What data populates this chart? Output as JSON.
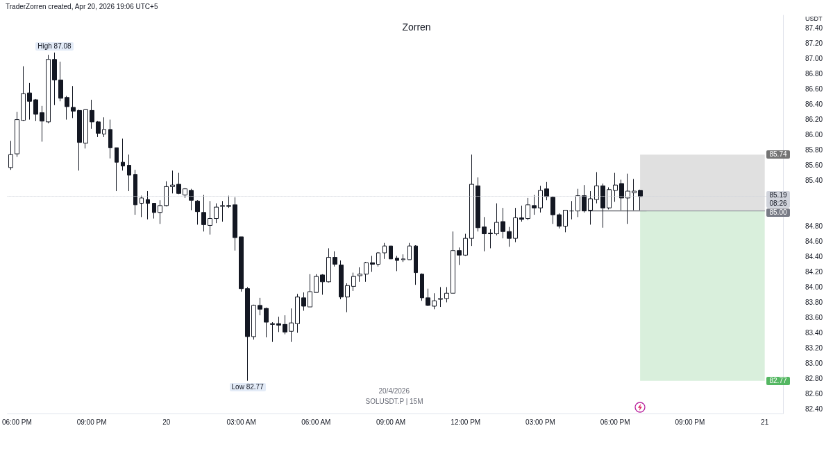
{
  "chart_data": {
    "type": "candlestick",
    "title": "Zorren",
    "subtitle": "TraderZorren created, Apr 20, 2026 19:06 UTC+5",
    "ylabel": "USDT",
    "annotations": [
      "20/4/2026",
      "SOLUSDT.P | 15M",
      {
        "text": "High 87.08",
        "x": "2026-04-19T19:30",
        "y": 87.08
      },
      {
        "text": "Low 82.77",
        "x": "2026-04-20T03:15",
        "y": 82.77
      }
    ],
    "x": [
      "2026-04-19T17:45",
      "2026-04-19T18:00",
      "2026-04-19T18:15",
      "2026-04-19T18:30",
      "2026-04-19T18:45",
      "2026-04-19T19:00",
      "2026-04-19T19:15",
      "2026-04-19T19:30",
      "2026-04-19T19:45",
      "2026-04-19T20:00",
      "2026-04-19T20:15",
      "2026-04-19T20:30",
      "2026-04-19T20:45",
      "2026-04-19T21:00",
      "2026-04-19T21:15",
      "2026-04-19T21:30",
      "2026-04-19T21:45",
      "2026-04-19T22:00",
      "2026-04-19T22:15",
      "2026-04-19T22:30",
      "2026-04-19T22:45",
      "2026-04-19T23:00",
      "2026-04-19T23:15",
      "2026-04-19T23:30",
      "2026-04-19T23:45",
      "2026-04-20T00:00",
      "2026-04-20T00:15",
      "2026-04-20T00:30",
      "2026-04-20T00:45",
      "2026-04-20T01:00",
      "2026-04-20T01:15",
      "2026-04-20T01:30",
      "2026-04-20T01:45",
      "2026-04-20T02:00",
      "2026-04-20T02:15",
      "2026-04-20T02:30",
      "2026-04-20T02:45",
      "2026-04-20T03:00",
      "2026-04-20T03:15",
      "2026-04-20T03:30",
      "2026-04-20T03:45",
      "2026-04-20T04:00",
      "2026-04-20T04:15",
      "2026-04-20T04:30",
      "2026-04-20T04:45",
      "2026-04-20T05:00",
      "2026-04-20T05:15",
      "2026-04-20T05:30",
      "2026-04-20T05:45",
      "2026-04-20T06:00",
      "2026-04-20T06:15",
      "2026-04-20T06:30",
      "2026-04-20T06:45",
      "2026-04-20T07:00",
      "2026-04-20T07:15",
      "2026-04-20T07:30",
      "2026-04-20T07:45",
      "2026-04-20T08:00",
      "2026-04-20T08:15",
      "2026-04-20T08:30",
      "2026-04-20T08:45",
      "2026-04-20T09:00",
      "2026-04-20T09:15",
      "2026-04-20T09:30",
      "2026-04-20T09:45",
      "2026-04-20T10:00",
      "2026-04-20T10:15",
      "2026-04-20T10:30",
      "2026-04-20T10:45",
      "2026-04-20T11:00",
      "2026-04-20T11:15",
      "2026-04-20T11:30",
      "2026-04-20T11:45",
      "2026-04-20T12:00",
      "2026-04-20T12:15",
      "2026-04-20T12:30",
      "2026-04-20T12:45",
      "2026-04-20T13:00",
      "2026-04-20T13:15",
      "2026-04-20T13:30",
      "2026-04-20T13:45",
      "2026-04-20T14:00",
      "2026-04-20T14:15",
      "2026-04-20T14:30",
      "2026-04-20T14:45",
      "2026-04-20T15:00",
      "2026-04-20T15:15",
      "2026-04-20T15:30",
      "2026-04-20T15:45",
      "2026-04-20T16:00",
      "2026-04-20T16:15",
      "2026-04-20T16:30",
      "2026-04-20T16:45",
      "2026-04-20T17:00",
      "2026-04-20T17:15",
      "2026-04-20T17:30",
      "2026-04-20T17:45",
      "2026-04-20T18:00",
      "2026-04-20T18:15",
      "2026-04-20T18:30",
      "2026-04-20T18:45",
      "2026-04-20T19:00"
    ],
    "ohlc": [
      [
        85.57,
        85.92,
        85.54,
        85.74
      ],
      [
        85.75,
        86.3,
        85.71,
        86.2
      ],
      [
        86.19,
        86.9,
        86.18,
        86.54
      ],
      [
        86.55,
        86.68,
        86.2,
        86.44
      ],
      [
        86.46,
        86.47,
        86.18,
        86.27
      ],
      [
        86.29,
        86.38,
        85.91,
        86.18
      ],
      [
        86.17,
        87.05,
        86.15,
        86.99
      ],
      [
        86.99,
        87.08,
        86.39,
        86.72
      ],
      [
        86.72,
        86.96,
        86.44,
        86.48
      ],
      [
        86.49,
        86.51,
        86.2,
        86.37
      ],
      [
        86.36,
        86.64,
        86.22,
        86.31
      ],
      [
        86.32,
        86.33,
        85.53,
        85.9
      ],
      [
        85.89,
        86.33,
        85.82,
        86.33
      ],
      [
        86.32,
        86.46,
        86.08,
        86.17
      ],
      [
        86.17,
        86.18,
        85.97,
        86.02
      ],
      [
        86.01,
        86.23,
        85.97,
        86.07
      ],
      [
        86.07,
        86.2,
        85.69,
        85.83
      ],
      [
        85.83,
        85.83,
        85.26,
        85.64
      ],
      [
        85.64,
        85.95,
        85.53,
        85.59
      ],
      [
        85.6,
        85.74,
        85.26,
        85.47
      ],
      [
        85.48,
        85.54,
        84.95,
        85.08
      ],
      [
        85.1,
        85.2,
        84.92,
        85.17
      ],
      [
        85.15,
        85.26,
        84.89,
        85.1
      ],
      [
        85.1,
        85.1,
        84.9,
        84.98
      ],
      [
        84.98,
        85.14,
        84.83,
        85.07
      ],
      [
        85.07,
        85.39,
        85.06,
        85.32
      ],
      [
        85.32,
        85.53,
        85.23,
        85.34
      ],
      [
        85.35,
        85.5,
        85.22,
        85.23
      ],
      [
        85.21,
        85.3,
        85.17,
        85.29
      ],
      [
        85.27,
        85.29,
        85.01,
        85.14
      ],
      [
        85.13,
        85.14,
        84.82,
        84.99
      ],
      [
        84.98,
        85.21,
        84.73,
        84.82
      ],
      [
        84.81,
        85.13,
        84.69,
        84.9
      ],
      [
        84.9,
        85.1,
        84.84,
        85.05
      ],
      [
        85.06,
        85.13,
        84.86,
        85.07
      ],
      [
        85.07,
        85.2,
        85.04,
        85.06
      ],
      [
        85.08,
        85.18,
        84.48,
        84.65
      ],
      [
        84.66,
        84.66,
        83.94,
        83.98
      ],
      [
        83.98,
        84.0,
        82.77,
        83.35
      ],
      [
        83.35,
        83.77,
        83.31,
        83.76
      ],
      [
        83.76,
        83.86,
        83.63,
        83.71
      ],
      [
        83.72,
        83.73,
        83.34,
        83.54
      ],
      [
        83.52,
        83.54,
        83.28,
        83.51
      ],
      [
        83.52,
        83.61,
        83.41,
        83.5
      ],
      [
        83.51,
        83.63,
        83.38,
        83.41
      ],
      [
        83.42,
        83.72,
        83.28,
        83.53
      ],
      [
        83.52,
        83.91,
        83.4,
        83.87
      ],
      [
        83.86,
        83.93,
        83.69,
        83.75
      ],
      [
        83.74,
        84.17,
        83.74,
        83.94
      ],
      [
        83.93,
        84.17,
        83.93,
        84.14
      ],
      [
        84.16,
        84.17,
        83.9,
        84.07
      ],
      [
        84.07,
        84.51,
        84.06,
        84.39
      ],
      [
        84.39,
        84.47,
        84.27,
        84.3
      ],
      [
        84.29,
        84.35,
        83.84,
        83.87
      ],
      [
        83.87,
        84.05,
        83.67,
        84.02
      ],
      [
        84.01,
        84.19,
        83.95,
        84.14
      ],
      [
        84.15,
        84.26,
        84.07,
        84.17
      ],
      [
        84.17,
        84.33,
        84.07,
        84.32
      ],
      [
        84.32,
        84.41,
        84.2,
        84.3
      ],
      [
        84.3,
        84.46,
        84.27,
        84.45
      ],
      [
        84.45,
        84.58,
        84.37,
        84.54
      ],
      [
        84.54,
        84.54,
        84.37,
        84.37
      ],
      [
        84.38,
        84.41,
        84.21,
        84.35
      ],
      [
        84.36,
        84.43,
        84.33,
        84.37
      ],
      [
        84.36,
        84.58,
        84.36,
        84.54
      ],
      [
        84.54,
        84.55,
        84.03,
        84.19
      ],
      [
        84.17,
        84.18,
        83.82,
        83.86
      ],
      [
        83.86,
        83.98,
        83.75,
        83.76
      ],
      [
        83.75,
        83.92,
        83.71,
        83.82
      ],
      [
        83.84,
        84.0,
        83.74,
        83.85
      ],
      [
        83.85,
        84.0,
        83.8,
        83.92
      ],
      [
        83.92,
        84.73,
        83.92,
        84.48
      ],
      [
        84.48,
        84.52,
        84.29,
        84.42
      ],
      [
        84.42,
        84.7,
        84.41,
        84.64
      ],
      [
        84.64,
        85.74,
        84.54,
        85.35
      ],
      [
        85.33,
        85.44,
        84.73,
        84.78
      ],
      [
        84.79,
        84.92,
        84.47,
        84.7
      ],
      [
        84.71,
        84.76,
        84.51,
        84.7
      ],
      [
        84.7,
        85.1,
        84.68,
        84.85
      ],
      [
        84.86,
        85.04,
        84.64,
        84.73
      ],
      [
        84.73,
        84.79,
        84.53,
        84.64
      ],
      [
        84.64,
        85.04,
        84.59,
        84.91
      ],
      [
        84.91,
        85.07,
        84.86,
        84.89
      ],
      [
        84.9,
        85.17,
        84.88,
        85.08
      ],
      [
        85.07,
        85.21,
        84.95,
        85.04
      ],
      [
        85.04,
        85.33,
        84.98,
        85.27
      ],
      [
        85.29,
        85.38,
        85.14,
        85.19
      ],
      [
        85.18,
        85.19,
        84.83,
        84.95
      ],
      [
        84.95,
        84.97,
        84.77,
        84.8
      ],
      [
        84.8,
        85.01,
        84.72,
        85.01
      ],
      [
        85.0,
        85.13,
        84.89,
        85.0
      ],
      [
        85.0,
        85.29,
        84.92,
        85.2
      ],
      [
        85.2,
        85.34,
        84.98,
        85.0
      ],
      [
        85.01,
        85.26,
        84.82,
        85.16
      ],
      [
        85.15,
        85.51,
        85.1,
        85.33
      ],
      [
        85.33,
        85.36,
        84.78,
        85.04
      ],
      [
        85.04,
        85.31,
        85.02,
        85.28
      ],
      [
        85.27,
        85.5,
        85.12,
        85.34
      ],
      [
        85.36,
        85.41,
        85.01,
        85.17
      ],
      [
        85.17,
        85.49,
        84.83,
        85.26
      ],
      [
        85.24,
        85.42,
        85.01,
        85.26
      ],
      [
        85.27,
        85.28,
        85.01,
        85.19
      ]
    ],
    "color": "#131722",
    "colors": [
      "#ffffff",
      "#ffffff",
      "#ffffff",
      "#131722",
      "#131722",
      "#131722",
      "#ffffff",
      "#131722",
      "#131722",
      "#131722",
      "#131722",
      "#131722",
      "#ffffff",
      "#131722",
      "#131722",
      "#ffffff",
      "#131722",
      "#131722",
      "#131722",
      "#131722",
      "#131722",
      "#ffffff",
      "#131722",
      "#131722",
      "#ffffff",
      "#ffffff",
      "#ffffff",
      "#131722",
      "#ffffff",
      "#131722",
      "#131722",
      "#131722",
      "#ffffff",
      "#ffffff",
      "#ffffff",
      "#131722",
      "#131722",
      "#131722",
      "#131722",
      "#ffffff",
      "#131722",
      "#131722",
      "#131722",
      "#131722",
      "#131722",
      "#ffffff",
      "#ffffff",
      "#131722",
      "#ffffff",
      "#ffffff",
      "#131722",
      "#ffffff",
      "#131722",
      "#131722",
      "#ffffff",
      "#ffffff",
      "#ffffff",
      "#ffffff",
      "#131722",
      "#ffffff",
      "#ffffff",
      "#131722",
      "#131722",
      "#ffffff",
      "#ffffff",
      "#131722",
      "#131722",
      "#131722",
      "#ffffff",
      "#ffffff",
      "#ffffff",
      "#ffffff",
      "#131722",
      "#ffffff",
      "#ffffff",
      "#131722",
      "#131722",
      "#131722",
      "#ffffff",
      "#131722",
      "#131722",
      "#ffffff",
      "#131722",
      "#ffffff",
      "#131722",
      "#ffffff",
      "#131722",
      "#131722",
      "#131722",
      "#ffffff",
      "#131722",
      "#ffffff",
      "#131722",
      "#ffffff",
      "#ffffff",
      "#131722",
      "#ffffff",
      "#ffffff",
      "#131722",
      "#ffffff",
      "#ffffff",
      "#131722"
    ],
    "series": [
      {
        "type": "line",
        "x": [
          "2026-04-20T16:55",
          "2026-04-20T19:15"
        ],
        "values": [
          85,
          85
        ],
        "color": "#131722"
      },
      {
        "type": "line",
        "x": [
          "2026-04-20T19:00",
          "2026-04-21T00:00"
        ],
        "values": [
          85,
          85
        ],
        "color": "#787b86",
        "value_labels": [
          null,
          "85.00"
        ]
      }
    ],
    "xlim": [
      "2026-04-19T17:37",
      "2026-04-21T00:44"
    ],
    "ylim": [
      82.34,
      87.57
    ],
    "xticks": [
      {
        "value": "2026-04-19T18:00",
        "label": "06:00 PM"
      },
      {
        "value": "2026-04-19T21:00",
        "label": "09:00 PM"
      },
      {
        "value": "2026-04-20T00:00",
        "label": "20"
      },
      {
        "value": "2026-04-20T03:00",
        "label": "03:00 AM"
      },
      {
        "value": "2026-04-20T06:00",
        "label": "06:00 AM"
      },
      {
        "value": "2026-04-20T09:00",
        "label": "09:00 AM"
      },
      {
        "value": "2026-04-20T12:00",
        "label": "12:00 PM"
      },
      {
        "value": "2026-04-20T15:00",
        "label": "03:00 PM"
      },
      {
        "value": "2026-04-20T18:00",
        "label": "06:00 PM"
      },
      {
        "value": "2026-04-20T21:00",
        "label": "09:00 PM"
      },
      {
        "value": "2026-04-21T00:00",
        "label": "21"
      }
    ],
    "yticks": [
      {
        "value": 82.4,
        "label": "82.40"
      },
      {
        "value": 82.6,
        "label": "82.60"
      },
      {
        "value": 82.8,
        "label": "82.80"
      },
      {
        "value": 83,
        "label": "83.00"
      },
      {
        "value": 83.2,
        "label": "83.20"
      },
      {
        "value": 83.4,
        "label": "83.40"
      },
      {
        "value": 83.6,
        "label": "83.60"
      },
      {
        "value": 83.8,
        "label": "83.80"
      },
      {
        "value": 84,
        "label": "84.00"
      },
      {
        "value": 84.2,
        "label": "84.20"
      },
      {
        "value": 84.4,
        "label": "84.40"
      },
      {
        "value": 84.6,
        "label": "84.60"
      },
      {
        "value": 84.8,
        "label": "84.80"
      },
      {
        "value": 85.4,
        "label": "85.40"
      },
      {
        "value": 85.6,
        "label": "85.60"
      },
      {
        "value": 85.8,
        "label": "85.80"
      },
      {
        "value": 86,
        "label": "86.00"
      },
      {
        "value": 86.2,
        "label": "86.20"
      },
      {
        "value": 86.4,
        "label": "86.40"
      },
      {
        "value": 86.6,
        "label": "86.60"
      },
      {
        "value": 86.8,
        "label": "86.80"
      },
      {
        "value": 87,
        "label": "87.00"
      },
      {
        "value": 87.2,
        "label": "87.20"
      },
      {
        "value": 87.4,
        "label": "87.40"
      }
    ],
    "ref_lines": [
      {
        "axis": "y",
        "value": 85.19,
        "label": "85.19\n08:26",
        "color": "#d1d4dc",
        "line_style": "dotted"
      }
    ],
    "bands": [
      {
        "axis": "y",
        "from": 85,
        "to": 85.74,
        "label": "85.74",
        "color": "#e0e0e0"
      },
      {
        "axis": "y",
        "from": 85,
        "to": 82.77,
        "label": "82.77",
        "color": "#d9efdc"
      }
    ]
  }
}
